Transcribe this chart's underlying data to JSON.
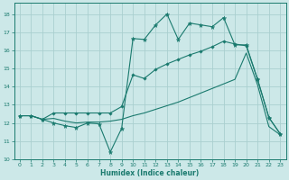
{
  "xlabel": "Humidex (Indice chaleur)",
  "bg_color": "#cce8e8",
  "grid_color": "#aacfcf",
  "line_color": "#1a7a6e",
  "xlim": [
    -0.5,
    23.5
  ],
  "ylim": [
    10,
    18.6
  ],
  "yticks": [
    10,
    11,
    12,
    13,
    14,
    15,
    16,
    17,
    18
  ],
  "xticks": [
    0,
    1,
    2,
    3,
    4,
    5,
    6,
    7,
    8,
    9,
    10,
    11,
    12,
    13,
    14,
    15,
    16,
    17,
    18,
    19,
    20,
    21,
    22,
    23
  ],
  "s1_x": [
    0,
    1,
    2,
    3,
    4,
    5,
    6,
    7,
    8,
    9,
    10,
    11,
    12,
    13,
    14,
    15,
    16,
    17,
    18,
    19,
    20,
    21,
    22,
    23
  ],
  "s1_y": [
    12.4,
    12.4,
    12.2,
    12.0,
    11.85,
    11.75,
    12.0,
    11.95,
    10.4,
    11.7,
    16.65,
    16.6,
    17.4,
    18.0,
    16.6,
    17.5,
    17.4,
    17.3,
    17.8,
    16.3,
    16.3,
    14.4,
    12.3,
    11.4
  ],
  "s2_x": [
    0,
    1,
    2,
    3,
    4,
    5,
    6,
    7,
    8,
    9,
    10,
    11,
    12,
    13,
    14,
    15,
    16,
    17,
    18,
    19,
    20,
    21,
    22,
    23
  ],
  "s2_y": [
    12.4,
    12.4,
    12.2,
    12.55,
    12.55,
    12.55,
    12.55,
    12.55,
    12.55,
    12.9,
    14.65,
    14.45,
    14.95,
    15.25,
    15.5,
    15.75,
    15.95,
    16.2,
    16.5,
    16.35,
    16.25,
    14.4,
    12.3,
    11.4
  ],
  "s3_x": [
    0,
    1,
    2,
    3,
    4,
    5,
    6,
    7,
    8,
    9,
    10,
    11,
    12,
    13,
    14,
    15,
    16,
    17,
    18,
    19,
    20,
    21,
    22,
    23
  ],
  "s3_y": [
    12.4,
    12.4,
    12.2,
    12.25,
    12.1,
    12.0,
    12.05,
    12.05,
    12.1,
    12.2,
    12.4,
    12.55,
    12.75,
    12.95,
    13.15,
    13.4,
    13.65,
    13.9,
    14.15,
    14.4,
    15.85,
    14.1,
    11.8,
    11.35
  ]
}
